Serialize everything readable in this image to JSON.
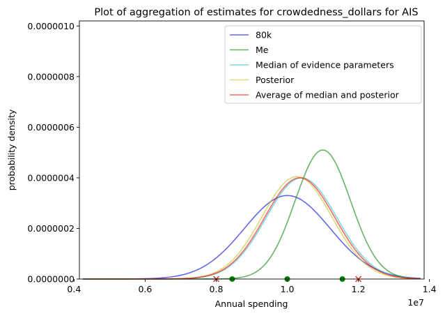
{
  "chart_data": {
    "type": "line",
    "title": "Plot of aggregation of estimates for crowdedness_dollars for AIS",
    "xlabel": "Annual spending",
    "ylabel": "probability density",
    "x_offset_label": "1e7",
    "xlim": [
      0.415,
      1.385
    ],
    "ylim": [
      0,
      1.02e-06
    ],
    "x_tick_values": [
      0.4,
      0.6,
      0.8,
      1.0,
      1.2,
      1.4
    ],
    "x_tick_labels": [
      "0.4",
      "0.6",
      "0.8",
      "1.0",
      "1.2",
      "1.4"
    ],
    "y_tick_values": [
      0,
      2e-07,
      4e-07,
      6e-07,
      8e-07,
      1e-06
    ],
    "y_tick_labels": [
      "0.0000000",
      "0.0000002",
      "0.0000004",
      "0.0000006",
      "0.0000008",
      "0.0000010"
    ],
    "x_range_plotted": [
      0.425,
      1.375
    ],
    "legend_position": "top-right",
    "series": [
      {
        "name": "80k",
        "color": "#0000dd",
        "distribution": "normal",
        "mean": 1.0,
        "sd": 0.1206,
        "peak": 3.3e-07
      },
      {
        "name": "Me",
        "color": "#008000",
        "distribution": "normal",
        "mean": 1.1,
        "sd": 0.078,
        "peak": 5.1e-07
      },
      {
        "name": "Median of evidence parameters",
        "color": "#22c4cc",
        "distribution": "normal",
        "mean": 1.04,
        "sd": 0.0995,
        "peak": 4e-07
      },
      {
        "name": "Posterior",
        "color": "#c8c022",
        "distribution": "normal",
        "mean": 1.027,
        "sd": 0.0985,
        "peak": 4.05e-07
      },
      {
        "name": "Average of median and posterior",
        "color": "#ff0000",
        "distribution": "normal",
        "mean": 1.035,
        "sd": 0.099,
        "peak": 4e-07
      }
    ],
    "markers": [
      {
        "x": 0.8,
        "y": 0,
        "marker": "x",
        "color": "#cc0000"
      },
      {
        "x": 1.2,
        "y": 0,
        "marker": "x",
        "color": "#cc0000"
      },
      {
        "x": 0.845,
        "y": 0,
        "marker": "dot",
        "color": "#008000"
      },
      {
        "x": 1.0,
        "y": 0,
        "marker": "dot",
        "color": "#008000"
      },
      {
        "x": 1.155,
        "y": 0,
        "marker": "dot",
        "color": "#008000"
      }
    ]
  }
}
